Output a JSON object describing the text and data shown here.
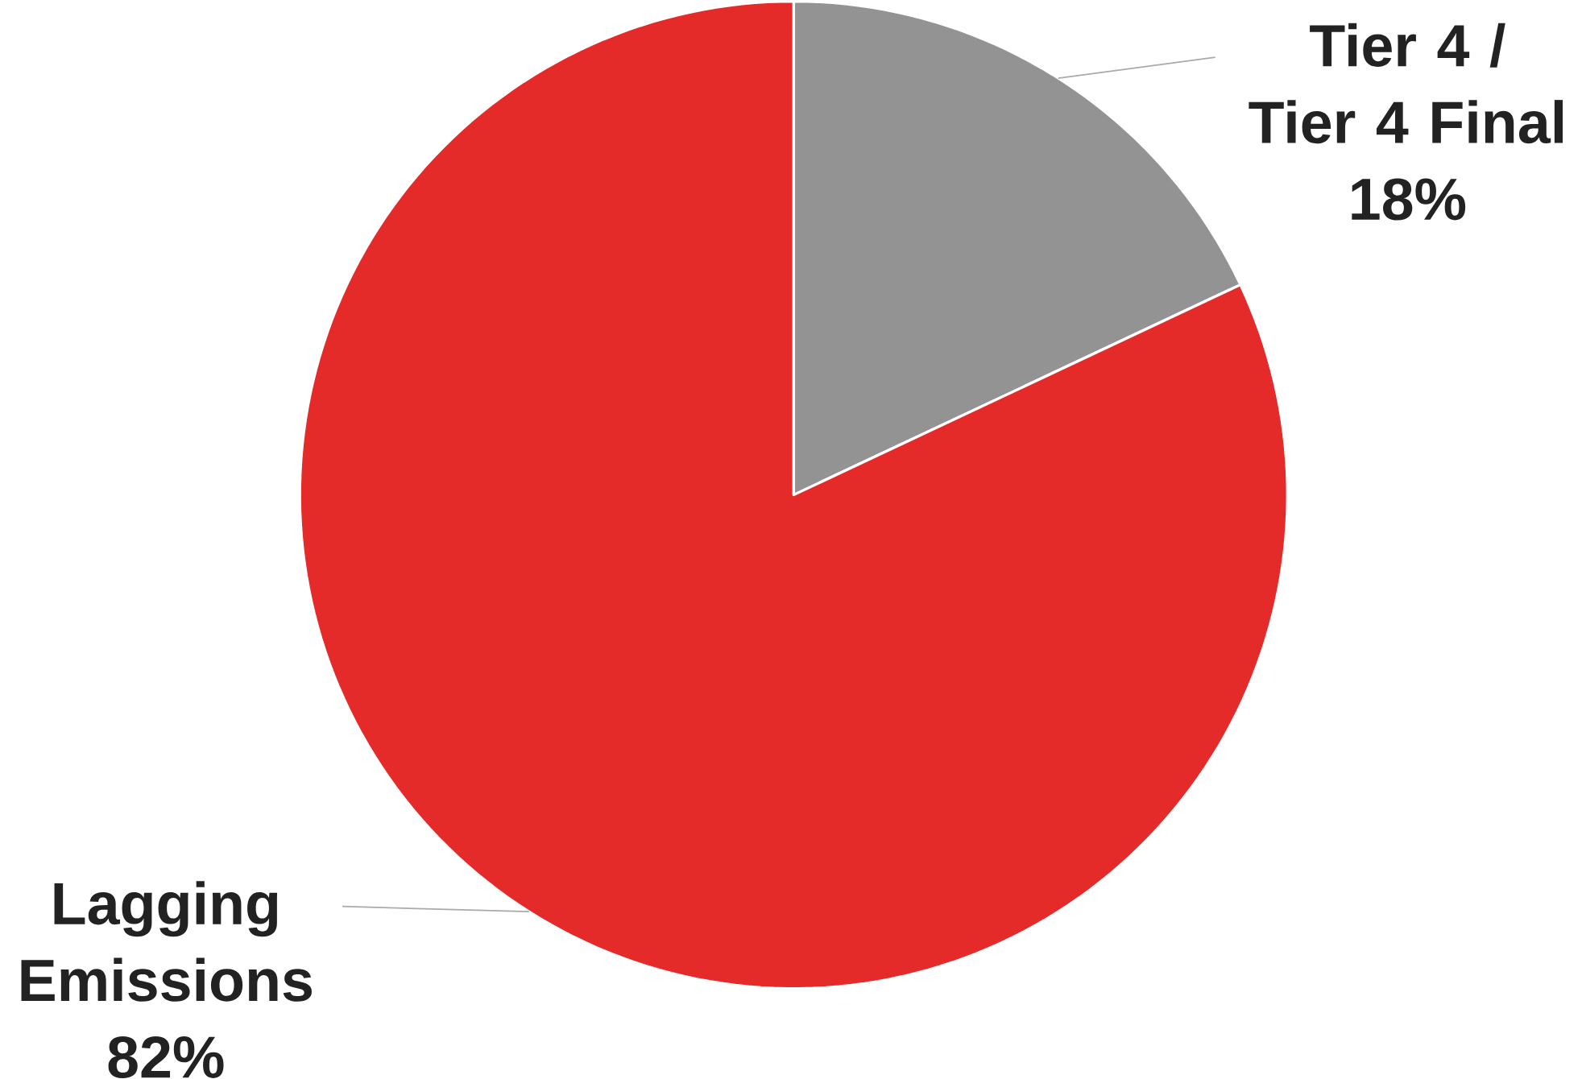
{
  "chart_data": {
    "type": "pie",
    "categories": [
      "Tier 4 / Tier 4 Final",
      "Lagging Emissions"
    ],
    "values": [
      18,
      82
    ],
    "value_labels": [
      "18%",
      "82%"
    ],
    "colors": [
      "#939393",
      "#e52a2a"
    ]
  }
}
